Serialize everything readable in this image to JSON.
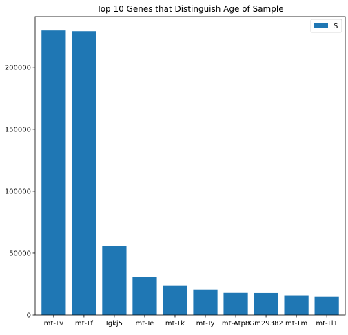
{
  "chart_data": {
    "type": "bar",
    "title": "Top 10 Genes that Distinguish Age of Sample",
    "xlabel": "",
    "ylabel": "",
    "categories": [
      "mt-Tv",
      "mt-Tf",
      "Igkj5",
      "mt-Te",
      "mt-Tk",
      "mt-Ty",
      "mt-Atp8",
      "Gm29382",
      "mt-Tm",
      "mt-Tl1"
    ],
    "series": [
      {
        "name": "S",
        "color": "#1f77b4",
        "values": [
          229800,
          229200,
          55800,
          30600,
          23500,
          20700,
          17900,
          17800,
          15800,
          14600
        ]
      }
    ],
    "ylim": [
      0,
      241000
    ],
    "yticks": [
      0,
      50000,
      100000,
      150000,
      200000
    ],
    "grid": false,
    "legend": "top-right"
  }
}
